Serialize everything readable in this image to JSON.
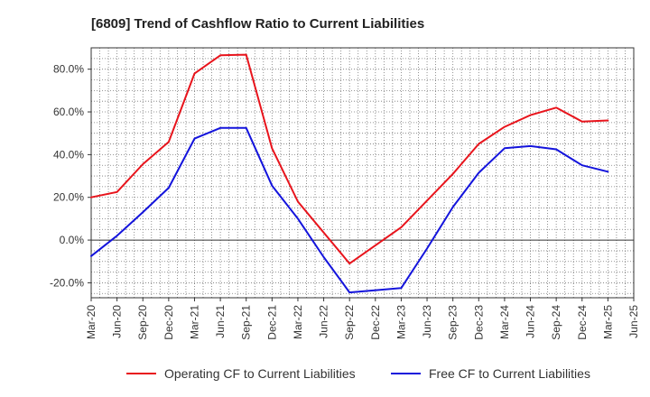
{
  "chart_data": {
    "type": "line",
    "title": "[6809]  Trend of Cashflow Ratio to Current Liabilities",
    "xlabel": "",
    "ylabel": "",
    "x_ticks": [
      "Mar-20",
      "Jun-20",
      "Sep-20",
      "Dec-20",
      "Mar-21",
      "Jun-21",
      "Sep-21",
      "Dec-21",
      "Mar-22",
      "Jun-22",
      "Sep-22",
      "Dec-22",
      "Mar-23",
      "Jun-23",
      "Sep-23",
      "Dec-23",
      "Mar-24",
      "Jun-24",
      "Sep-24",
      "Dec-24",
      "Mar-25",
      "Jun-25"
    ],
    "y_ticks": [
      {
        "value": -20,
        "label": "-20.0%"
      },
      {
        "value": 0,
        "label": "0.0%"
      },
      {
        "value": 20,
        "label": "20.0%"
      },
      {
        "value": 40,
        "label": "40.0%"
      },
      {
        "value": 60,
        "label": "60.0%"
      },
      {
        "value": 80,
        "label": "80.0%"
      }
    ],
    "ylim": [
      -27,
      90
    ],
    "grid": true,
    "legend_position": "bottom",
    "series": [
      {
        "name": "Operating CF to Current Liabilities",
        "color": "#e8141c",
        "points": [
          [
            "Mar-20",
            20.0
          ],
          [
            "Jun-20",
            22.5
          ],
          [
            "Sep-20",
            35.5
          ],
          [
            "Dec-20",
            46.0
          ],
          [
            "Mar-21",
            78.0
          ],
          [
            "Jun-21",
            86.5
          ],
          [
            "Sep-21",
            86.8
          ],
          [
            "Dec-21",
            43.0
          ],
          [
            "Mar-22",
            18.0
          ],
          [
            "Sep-22",
            -11.0
          ],
          [
            "Mar-23",
            6.0
          ],
          [
            "Sep-23",
            31.0
          ],
          [
            "Dec-23",
            45.0
          ],
          [
            "Mar-24",
            53.0
          ],
          [
            "Jun-24",
            58.5
          ],
          [
            "Sep-24",
            62.0
          ],
          [
            "Dec-24",
            55.5
          ],
          [
            "Mar-25",
            56.0
          ]
        ]
      },
      {
        "name": "Free CF to Current Liabilities",
        "color": "#1414dc",
        "points": [
          [
            "Mar-20",
            -7.5
          ],
          [
            "Jun-20",
            2.0
          ],
          [
            "Sep-20",
            13.0
          ],
          [
            "Dec-20",
            24.5
          ],
          [
            "Mar-21",
            47.5
          ],
          [
            "Jun-21",
            52.5
          ],
          [
            "Sep-21",
            52.5
          ],
          [
            "Dec-21",
            25.5
          ],
          [
            "Mar-22",
            10.0
          ],
          [
            "Jun-22",
            -8.0
          ],
          [
            "Sep-22",
            -24.5
          ],
          [
            "Mar-23",
            -22.5
          ],
          [
            "Jun-23",
            -4.0
          ],
          [
            "Sep-23",
            15.5
          ],
          [
            "Dec-23",
            31.5
          ],
          [
            "Mar-24",
            43.0
          ],
          [
            "Jun-24",
            44.0
          ],
          [
            "Sep-24",
            42.5
          ],
          [
            "Dec-24",
            35.0
          ],
          [
            "Mar-25",
            32.0
          ]
        ]
      }
    ]
  }
}
